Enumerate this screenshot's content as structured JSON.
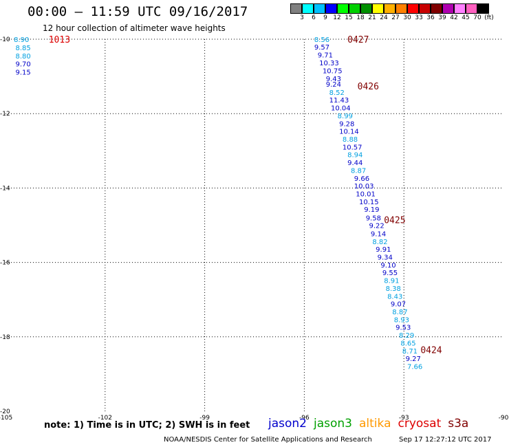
{
  "header": {
    "title": "00:00 – 11:59 UTC 09/16/2017",
    "subtitle": "12 hour collection of altimeter wave heights"
  },
  "color_scale": {
    "colors": [
      "#808080",
      "#00ffff",
      "#00c0ff",
      "#0000ff",
      "#00ff00",
      "#00d000",
      "#009000",
      "#ffff00",
      "#ffb000",
      "#ff8000",
      "#ff0000",
      "#c80000",
      "#800000",
      "#b000b0",
      "#ff80ff",
      "#ff60c0",
      "#000000"
    ],
    "labels": [
      "3",
      "6",
      "9",
      "12",
      "15",
      "18",
      "21",
      "24",
      "27",
      "30",
      "33",
      "36",
      "39",
      "42",
      "45",
      "70",
      "(ft)"
    ]
  },
  "map": {
    "lon_range": [
      -105,
      -90
    ],
    "lat_range": [
      -20,
      -10
    ],
    "lon_ticks": [
      "-105",
      "-102",
      "-99",
      "-96",
      "-93",
      "-90"
    ],
    "lat_ticks": [
      "-10",
      "-12",
      "-14",
      "-16",
      "-18",
      "-20"
    ]
  },
  "satellites": [
    {
      "name": "jason2",
      "color": "#0000cc"
    },
    {
      "name": "jason3",
      "color": "#00a000"
    },
    {
      "name": "altika",
      "color": "#ff9900"
    },
    {
      "name": "cryosat",
      "color": "#dd0000"
    },
    {
      "name": "s3a",
      "color": "#800000"
    }
  ],
  "passes": [
    {
      "time": "1013",
      "lon": -103.7,
      "lat": -10.0,
      "color": "#dd0000"
    },
    {
      "time": "0427",
      "lon": -94.7,
      "lat": -10.0,
      "color": "#800000"
    },
    {
      "time": "0426",
      "lon": -94.4,
      "lat": -11.26,
      "color": "#800000"
    },
    {
      "time": "0425",
      "lon": -93.6,
      "lat": -14.85,
      "color": "#800000"
    },
    {
      "time": "0424",
      "lon": -92.5,
      "lat": -18.35,
      "color": "#800000"
    }
  ],
  "observations": [
    {
      "v": "8.90",
      "lon": -104.75,
      "lat": -10.0,
      "c": "#00a0e0"
    },
    {
      "v": "8.85",
      "lon": -104.7,
      "lat": -10.22,
      "c": "#00a0e0"
    },
    {
      "v": "8.80",
      "lon": -104.7,
      "lat": -10.44,
      "c": "#00a0e0"
    },
    {
      "v": "9.70",
      "lon": -104.7,
      "lat": -10.66,
      "c": "#0000c8"
    },
    {
      "v": "9.15",
      "lon": -104.7,
      "lat": -10.88,
      "c": "#0000c8"
    },
    {
      "v": "8.56",
      "lon": -95.7,
      "lat": -10.0,
      "c": "#00a0e0"
    },
    {
      "v": "9.57",
      "lon": -95.7,
      "lat": -10.2,
      "c": "#0000c8"
    },
    {
      "v": "9.71",
      "lon": -95.6,
      "lat": -10.42,
      "c": "#0000c8"
    },
    {
      "v": "10.33",
      "lon": -95.55,
      "lat": -10.63,
      "c": "#0000c8"
    },
    {
      "v": "10.75",
      "lon": -95.45,
      "lat": -10.84,
      "c": "#0000c8"
    },
    {
      "v": "9.43",
      "lon": -95.35,
      "lat": -11.05,
      "c": "#0000c8"
    },
    {
      "v": "9.24",
      "lon": -95.35,
      "lat": -11.2,
      "c": "#0000c8"
    },
    {
      "v": "8.52",
      "lon": -95.25,
      "lat": -11.42,
      "c": "#00a0e0"
    },
    {
      "v": "11.43",
      "lon": -95.25,
      "lat": -11.63,
      "c": "#0000c8"
    },
    {
      "v": "10.04",
      "lon": -95.2,
      "lat": -11.84,
      "c": "#0000c8"
    },
    {
      "v": "8.99",
      "lon": -95.0,
      "lat": -12.05,
      "c": "#00a0e0"
    },
    {
      "v": "9.28",
      "lon": -94.95,
      "lat": -12.26,
      "c": "#0000c8"
    },
    {
      "v": "10.14",
      "lon": -94.95,
      "lat": -12.47,
      "c": "#0000c8"
    },
    {
      "v": "8.88",
      "lon": -94.85,
      "lat": -12.68,
      "c": "#00a0e0"
    },
    {
      "v": "10.57",
      "lon": -94.85,
      "lat": -12.89,
      "c": "#0000c8"
    },
    {
      "v": "8.94",
      "lon": -94.7,
      "lat": -13.1,
      "c": "#00a0e0"
    },
    {
      "v": "9.44",
      "lon": -94.7,
      "lat": -13.31,
      "c": "#0000c8"
    },
    {
      "v": "8.87",
      "lon": -94.6,
      "lat": -13.52,
      "c": "#00a0e0"
    },
    {
      "v": "9.66",
      "lon": -94.5,
      "lat": -13.73,
      "c": "#0000c8"
    },
    {
      "v": "10.03",
      "lon": -94.5,
      "lat": -13.94,
      "c": "#0000c8"
    },
    {
      "v": "10.01",
      "lon": -94.45,
      "lat": -14.15,
      "c": "#0000c8"
    },
    {
      "v": "10.15",
      "lon": -94.35,
      "lat": -14.36,
      "c": "#0000c8"
    },
    {
      "v": "9.19",
      "lon": -94.2,
      "lat": -14.57,
      "c": "#0000c8"
    },
    {
      "v": "9.58",
      "lon": -94.15,
      "lat": -14.8,
      "c": "#0000c8"
    },
    {
      "v": "9.22",
      "lon": -94.05,
      "lat": -15.0,
      "c": "#0000c8"
    },
    {
      "v": "9.14",
      "lon": -94.0,
      "lat": -15.22,
      "c": "#0000c8"
    },
    {
      "v": "8.82",
      "lon": -93.95,
      "lat": -15.43,
      "c": "#00a0e0"
    },
    {
      "v": "9.91",
      "lon": -93.85,
      "lat": -15.64,
      "c": "#0000c8"
    },
    {
      "v": "9.34",
      "lon": -93.8,
      "lat": -15.85,
      "c": "#0000c8"
    },
    {
      "v": "9.10",
      "lon": -93.7,
      "lat": -16.06,
      "c": "#0000c8"
    },
    {
      "v": "9.55",
      "lon": -93.65,
      "lat": -16.27,
      "c": "#0000c8"
    },
    {
      "v": "8.91",
      "lon": -93.6,
      "lat": -16.48,
      "c": "#00a0e0"
    },
    {
      "v": "8.38",
      "lon": -93.55,
      "lat": -16.69,
      "c": "#00a0e0"
    },
    {
      "v": "8.43",
      "lon": -93.5,
      "lat": -16.9,
      "c": "#00a0e0"
    },
    {
      "v": "9.07",
      "lon": -93.4,
      "lat": -17.11,
      "c": "#0000c8"
    },
    {
      "v": "8.87",
      "lon": -93.35,
      "lat": -17.32,
      "c": "#00a0e0"
    },
    {
      "v": "8.93",
      "lon": -93.3,
      "lat": -17.53,
      "c": "#00a0e0"
    },
    {
      "v": "9.53",
      "lon": -93.25,
      "lat": -17.74,
      "c": "#0000c8"
    },
    {
      "v": "8.29",
      "lon": -93.15,
      "lat": -17.95,
      "c": "#00a0e0"
    },
    {
      "v": "8.65",
      "lon": -93.1,
      "lat": -18.16,
      "c": "#00a0e0"
    },
    {
      "v": "8.71",
      "lon": -93.05,
      "lat": -18.37,
      "c": "#00a0e0"
    },
    {
      "v": "9.27",
      "lon": -92.95,
      "lat": -18.58,
      "c": "#0000c8"
    },
    {
      "v": "7.66",
      "lon": -92.9,
      "lat": -18.79,
      "c": "#00a0e0"
    }
  ],
  "footer": {
    "note": "note: 1) Time is in UTC; 2) SWH is in feet",
    "credit": "NOAA/NESDIS Center for Satellite Applications and Research",
    "generated": "Sep 17 12:27:12 UTC 2017"
  }
}
